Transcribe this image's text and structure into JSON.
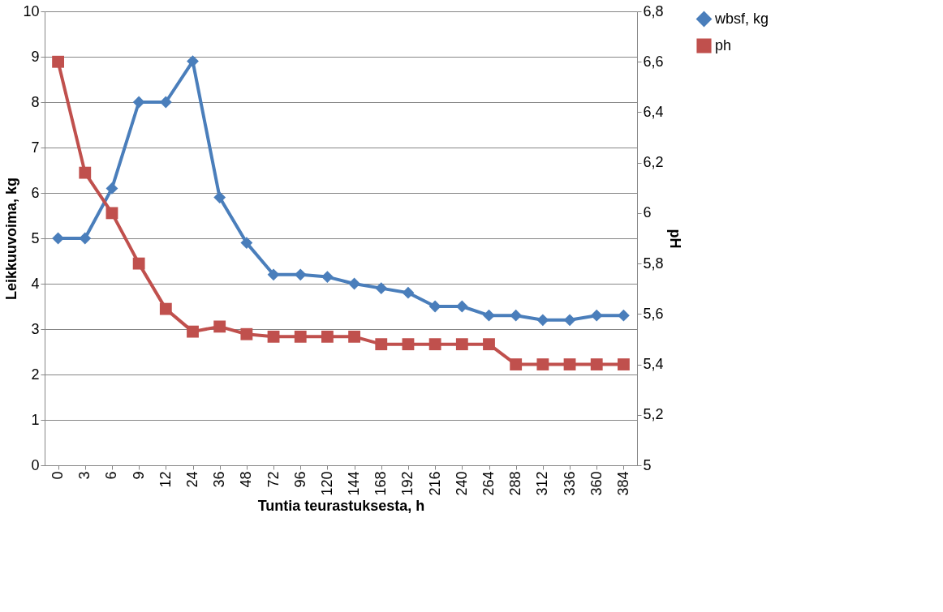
{
  "chart_data": {
    "type": "line",
    "xlabel": "Tuntia teurastuksesta, h",
    "ylabel": "Leikkuuvoima, kg",
    "y2label": "pH",
    "categories": [
      "0",
      "3",
      "6",
      "9",
      "12",
      "24",
      "36",
      "48",
      "72",
      "96",
      "120",
      "144",
      "168",
      "192",
      "216",
      "240",
      "264",
      "288",
      "312",
      "336",
      "360",
      "384"
    ],
    "series": [
      {
        "name": "wbsf, kg",
        "color": "#4a7ebb",
        "marker": "diamond",
        "values": [
          5.0,
          5.0,
          6.1,
          8.0,
          8.0,
          8.9,
          5.9,
          4.9,
          4.2,
          4.2,
          4.15,
          4.0,
          3.9,
          3.8,
          3.5,
          3.5,
          3.3,
          3.3,
          3.2,
          3.2,
          3.3,
          3.3
        ]
      },
      {
        "name": "ph",
        "color": "#c0504d",
        "marker": "square",
        "axis": "y2",
        "values": [
          6.6,
          6.16,
          6.0,
          5.8,
          5.62,
          5.53,
          5.55,
          5.52,
          5.51,
          5.51,
          5.51,
          5.51,
          5.48,
          5.48,
          5.48,
          5.48,
          5.48,
          5.4,
          5.4,
          5.4,
          5.4,
          5.4
        ]
      }
    ],
    "ylim": [
      0,
      10
    ],
    "yticks": [
      0,
      1,
      2,
      3,
      4,
      5,
      6,
      7,
      8,
      9,
      10
    ],
    "y2lim": [
      5,
      6.8
    ],
    "y2ticks": [
      {
        "value": 5,
        "label": "5"
      },
      {
        "value": 5.2,
        "label": "5,2"
      },
      {
        "value": 5.4,
        "label": "5,4"
      },
      {
        "value": 5.6,
        "label": "5,6"
      },
      {
        "value": 5.8,
        "label": "5,8"
      },
      {
        "value": 6,
        "label": "6"
      },
      {
        "value": 6.2,
        "label": "6,2"
      },
      {
        "value": 6.4,
        "label": "6,4"
      },
      {
        "value": 6.6,
        "label": "6,6"
      },
      {
        "value": 6.8,
        "label": "6,8"
      }
    ],
    "grid": "y",
    "legend": "right",
    "line_style": "solid"
  }
}
